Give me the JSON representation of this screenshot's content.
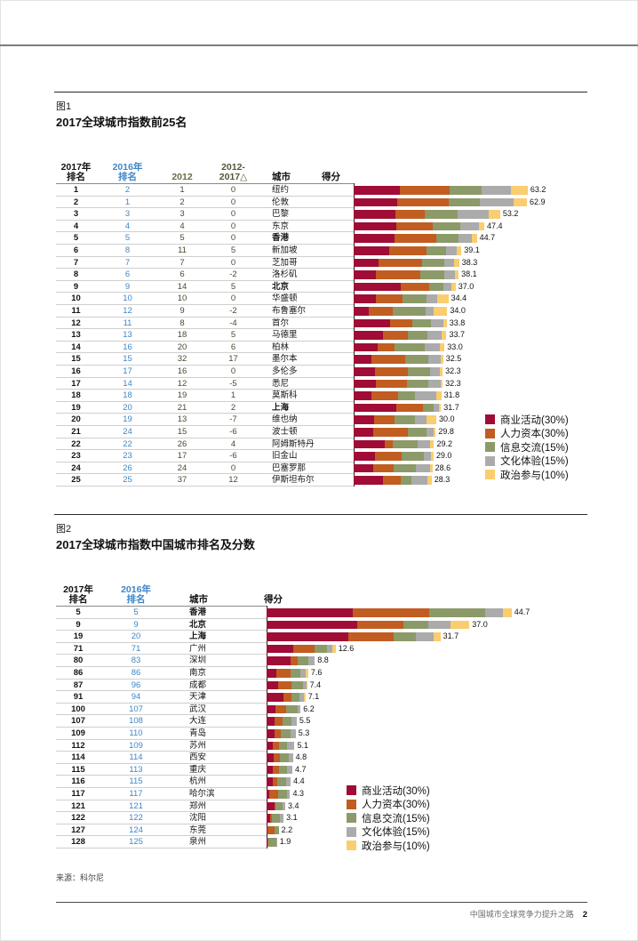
{
  "page": {
    "source": "来源：科尔尼",
    "footer_title": "中国城市全球竞争力提升之路",
    "page_number": "2"
  },
  "palette": {
    "business": "#A00C35",
    "human_capital": "#C15D20",
    "information": "#8B9A68",
    "culture": "#ABABAB",
    "politics": "#FACD6E",
    "rank2016_blue": "#3E86C8",
    "rank2012_olive": "#6A6A45",
    "change_olive": "#55553A",
    "rank_value_olive": "#4A4A33"
  },
  "legend_items": [
    {
      "key": "business",
      "label": "商业活动(30%)"
    },
    {
      "key": "human_capital",
      "label": "人力资本(30%)"
    },
    {
      "key": "information",
      "label": "信息交流(15%)"
    },
    {
      "key": "culture",
      "label": "文化体验(15%)"
    },
    {
      "key": "politics",
      "label": "政治参与(10%)"
    }
  ],
  "chart_data": [
    {
      "id": "fig1",
      "type": "bar",
      "subtype": "stacked-horizontal",
      "figure_label": "图1",
      "title": "2017全球城市指数前25名",
      "legend_position": "right-bottom",
      "series_names": [
        "商业活动(30%)",
        "人力资本(30%)",
        "信息交流(15%)",
        "文化体验(15%)",
        "政治参与(10%)"
      ],
      "headers": {
        "rank2017": "2017年|排名",
        "rank2016": "2016年|排名",
        "rank2012": "2012",
        "change": "2012-|2017△",
        "city": "城市",
        "score": "得分"
      },
      "rows": [
        {
          "rank2017": "1",
          "rank2016": "2",
          "rank2012": "1",
          "change": "0",
          "city": "纽约",
          "bold": false,
          "score": 63.2,
          "label": "63.2",
          "breakdown": [
            16.8,
            18.1,
            11.7,
            10.6,
            6.0
          ]
        },
        {
          "rank2017": "2",
          "rank2016": "1",
          "rank2012": "2",
          "change": "0",
          "city": "伦敦",
          "bold": false,
          "score": 62.9,
          "label": "62.9",
          "breakdown": [
            15.8,
            18.7,
            11.2,
            12.3,
            4.9
          ]
        },
        {
          "rank2017": "3",
          "rank2016": "3",
          "rank2012": "3",
          "change": "0",
          "city": "巴黎",
          "bold": false,
          "score": 53.2,
          "label": "53.2",
          "breakdown": [
            15.3,
            10.4,
            12.1,
            11.1,
            4.3
          ]
        },
        {
          "rank2017": "4",
          "rank2016": "4",
          "rank2012": "4",
          "change": "0",
          "city": "东京",
          "bold": false,
          "score": 47.4,
          "label": "47.4",
          "breakdown": [
            15.4,
            13.3,
            10.1,
            6.8,
            1.8
          ]
        },
        {
          "rank2017": "5",
          "rank2016": "5",
          "rank2012": "5",
          "change": "0",
          "city": "香港",
          "bold": true,
          "score": 44.7,
          "label": "44.7",
          "breakdown": [
            14.9,
            15.1,
            8.0,
            4.8,
            1.9
          ]
        },
        {
          "rank2017": "6",
          "rank2016": "8",
          "rank2012": "11",
          "change": "5",
          "city": "新加坡",
          "bold": false,
          "score": 39.1,
          "label": "39.1",
          "breakdown": [
            12.8,
            13.6,
            7.1,
            3.8,
            1.8
          ]
        },
        {
          "rank2017": "7",
          "rank2016": "7",
          "rank2012": "7",
          "change": "0",
          "city": "芝加哥",
          "bold": false,
          "score": 38.3,
          "label": "38.3",
          "breakdown": [
            9.0,
            15.7,
            8.1,
            3.8,
            1.7
          ]
        },
        {
          "rank2017": "8",
          "rank2016": "6",
          "rank2012": "6",
          "change": "-2",
          "city": "洛杉矶",
          "bold": false,
          "score": 38.1,
          "label": "38.1",
          "breakdown": [
            8.0,
            16.3,
            8.7,
            3.8,
            1.3
          ]
        },
        {
          "rank2017": "9",
          "rank2016": "9",
          "rank2012": "14",
          "change": "5",
          "city": "北京",
          "bold": true,
          "score": 37.0,
          "label": "37.0",
          "breakdown": [
            17.2,
            10.3,
            5.1,
            3.0,
            1.4
          ]
        },
        {
          "rank2017": "10",
          "rank2016": "10",
          "rank2012": "10",
          "change": "0",
          "city": "华盛顿",
          "bold": false,
          "score": 34.4,
          "label": "34.4",
          "breakdown": [
            8.2,
            9.5,
            8.6,
            3.9,
            4.2
          ]
        },
        {
          "rank2017": "11",
          "rank2016": "12",
          "rank2012": "9",
          "change": "-2",
          "city": "布鲁塞尔",
          "bold": false,
          "score": 34.0,
          "label": "34.0",
          "breakdown": [
            5.4,
            8.7,
            12.0,
            2.8,
            5.1
          ]
        },
        {
          "rank2017": "12",
          "rank2016": "11",
          "rank2012": "8",
          "change": "-4",
          "city": "首尔",
          "bold": false,
          "score": 33.8,
          "label": "33.8",
          "breakdown": [
            13.3,
            7.9,
            6.8,
            4.5,
            1.3
          ]
        },
        {
          "rank2017": "13",
          "rank2016": "13",
          "rank2012": "18",
          "change": "5",
          "city": "马德里",
          "bold": false,
          "score": 33.7,
          "label": "33.7",
          "breakdown": [
            10.6,
            9.0,
            7.3,
            5.1,
            1.7
          ]
        },
        {
          "rank2017": "14",
          "rank2016": "16",
          "rank2012": "20",
          "change": "6",
          "city": "柏林",
          "bold": false,
          "score": 33.0,
          "label": "33.0",
          "breakdown": [
            8.8,
            6.2,
            10.7,
            5.6,
            1.7
          ]
        },
        {
          "rank2017": "15",
          "rank2016": "15",
          "rank2012": "32",
          "change": "17",
          "city": "墨尔本",
          "bold": false,
          "score": 32.5,
          "label": "32.5",
          "breakdown": [
            6.5,
            12.3,
            8.4,
            4.5,
            0.8
          ]
        },
        {
          "rank2017": "16",
          "rank2016": "17",
          "rank2012": "16",
          "change": "0",
          "city": "多伦多",
          "bold": false,
          "score": 32.3,
          "label": "32.3",
          "breakdown": [
            7.6,
            12.1,
            8.1,
            3.6,
            0.9
          ]
        },
        {
          "rank2017": "17",
          "rank2016": "14",
          "rank2012": "12",
          "change": "-5",
          "city": "悉尼",
          "bold": false,
          "score": 32.3,
          "label": "32.3",
          "breakdown": [
            8.2,
            11.2,
            7.8,
            4.3,
            0.8
          ]
        },
        {
          "rank2017": "18",
          "rank2016": "18",
          "rank2012": "19",
          "change": "1",
          "city": "莫斯科",
          "bold": false,
          "score": 31.8,
          "label": "31.8",
          "breakdown": [
            6.5,
            9.5,
            6.2,
            7.9,
            1.7
          ]
        },
        {
          "rank2017": "19",
          "rank2016": "20",
          "rank2012": "21",
          "change": "2",
          "city": "上海",
          "bold": true,
          "score": 31.7,
          "label": "31.7",
          "breakdown": [
            15.6,
            9.6,
            3.7,
            2.2,
            0.6
          ]
        },
        {
          "rank2017": "20",
          "rank2016": "19",
          "rank2012": "13",
          "change": "-7",
          "city": "维也纳",
          "bold": false,
          "score": 30.0,
          "label": "30.0",
          "breakdown": [
            7.4,
            7.6,
            7.3,
            4.0,
            3.7
          ]
        },
        {
          "rank2017": "21",
          "rank2016": "24",
          "rank2012": "15",
          "change": "-6",
          "city": "波士顿",
          "bold": false,
          "score": 29.8,
          "label": "29.8",
          "breakdown": [
            7.2,
            12.5,
            6.8,
            2.5,
            0.8
          ]
        },
        {
          "rank2017": "22",
          "rank2016": "22",
          "rank2012": "26",
          "change": "4",
          "city": "阿姆斯特丹",
          "bold": false,
          "score": 29.2,
          "label": "29.2",
          "breakdown": [
            11.2,
            2.9,
            9.1,
            4.6,
            1.4
          ]
        },
        {
          "rank2017": "23",
          "rank2016": "23",
          "rank2012": "17",
          "change": "-6",
          "city": "旧金山",
          "bold": false,
          "score": 29.0,
          "label": "29.0",
          "breakdown": [
            7.7,
            9.7,
            8.0,
            2.8,
            0.8
          ]
        },
        {
          "rank2017": "24",
          "rank2016": "26",
          "rank2012": "24",
          "change": "0",
          "city": "巴塞罗那",
          "bold": false,
          "score": 28.6,
          "label": "28.6",
          "breakdown": [
            7.2,
            7.4,
            8.0,
            5.2,
            0.8
          ]
        },
        {
          "rank2017": "25",
          "rank2016": "25",
          "rank2012": "37",
          "change": "12",
          "city": "伊斯坦布尔",
          "bold": false,
          "score": 28.3,
          "label": "28.3",
          "breakdown": [
            10.8,
            6.3,
            4.0,
            5.7,
            1.5
          ]
        }
      ]
    },
    {
      "id": "fig2",
      "type": "bar",
      "subtype": "stacked-horizontal",
      "figure_label": "图2",
      "title": "2017全球城市指数中国城市排名及分数",
      "legend_position": "center-bottom",
      "series_names": [
        "商业活动(30%)",
        "人力资本(30%)",
        "信息交流(15%)",
        "文化体验(15%)",
        "政治参与(10%)"
      ],
      "headers": {
        "rank2017": "2017年|排名",
        "rank2016": "2016年|排名",
        "city": "城市",
        "score": "得分"
      },
      "rows": [
        {
          "rank2017": "5",
          "rank2016": "5",
          "city": "香港",
          "bold": true,
          "score": 44.7,
          "label": "44.7",
          "breakdown": [
            15.7,
            14.0,
            10.2,
            3.2,
            1.6
          ]
        },
        {
          "rank2017": "9",
          "rank2016": "9",
          "city": "北京",
          "bold": true,
          "score": 37.0,
          "label": "37.0",
          "breakdown": [
            16.5,
            8.4,
            4.6,
            4.0,
            3.5
          ]
        },
        {
          "rank2017": "19",
          "rank2016": "20",
          "city": "上海",
          "bold": true,
          "score": 31.7,
          "label": "31.7",
          "breakdown": [
            14.9,
            8.2,
            4.1,
            3.3,
            1.2
          ]
        },
        {
          "rank2017": "71",
          "rank2016": "71",
          "city": "广州",
          "bold": false,
          "score": 12.6,
          "label": "12.6",
          "breakdown": [
            4.9,
            3.8,
            2.3,
            1.0,
            0.6
          ]
        },
        {
          "rank2017": "80",
          "rank2016": "83",
          "city": "深圳",
          "bold": false,
          "score": 8.8,
          "label": "8.8",
          "breakdown": [
            4.4,
            1.3,
            2.0,
            1.1,
            0
          ]
        },
        {
          "rank2017": "86",
          "rank2016": "86",
          "city": "南京",
          "bold": false,
          "score": 7.6,
          "label": "7.6",
          "breakdown": [
            1.8,
            2.5,
            1.9,
            0.9,
            0.5
          ]
        },
        {
          "rank2017": "87",
          "rank2016": "96",
          "city": "成都",
          "bold": false,
          "score": 7.4,
          "label": "7.4",
          "breakdown": [
            2.1,
            2.5,
            2.1,
            0.6,
            0.1
          ]
        },
        {
          "rank2017": "91",
          "rank2016": "94",
          "city": "天津",
          "bold": false,
          "score": 7.1,
          "label": "7.1",
          "breakdown": [
            3.0,
            1.5,
            1.5,
            0.8,
            0.3
          ]
        },
        {
          "rank2017": "100",
          "rank2016": "107",
          "city": "武汉",
          "bold": false,
          "score": 6.2,
          "label": "6.2",
          "breakdown": [
            1.6,
            1.9,
            2.1,
            0.6,
            0
          ]
        },
        {
          "rank2017": "107",
          "rank2016": "108",
          "city": "大连",
          "bold": false,
          "score": 5.5,
          "label": "5.5",
          "breakdown": [
            1.4,
            1.6,
            1.6,
            0.9,
            0
          ]
        },
        {
          "rank2017": "109",
          "rank2016": "110",
          "city": "青岛",
          "bold": false,
          "score": 5.3,
          "label": "5.3",
          "breakdown": [
            1.4,
            1.2,
            1.7,
            1.0,
            0
          ]
        },
        {
          "rank2017": "112",
          "rank2016": "109",
          "city": "苏州",
          "bold": false,
          "score": 5.1,
          "label": "5.1",
          "breakdown": [
            1.2,
            1.0,
            1.6,
            1.3,
            0
          ]
        },
        {
          "rank2017": "114",
          "rank2016": "114",
          "city": "西安",
          "bold": false,
          "score": 4.8,
          "label": "4.8",
          "breakdown": [
            1.3,
            1.2,
            1.5,
            0.8,
            0
          ]
        },
        {
          "rank2017": "115",
          "rank2016": "113",
          "city": "重庆",
          "bold": false,
          "score": 4.7,
          "label": "4.7",
          "breakdown": [
            1.2,
            1.1,
            1.4,
            1.0,
            0
          ]
        },
        {
          "rank2017": "116",
          "rank2016": "115",
          "city": "杭州",
          "bold": false,
          "score": 4.4,
          "label": "4.4",
          "breakdown": [
            1.1,
            0.9,
            1.6,
            0.8,
            0
          ]
        },
        {
          "rank2017": "117",
          "rank2016": "117",
          "city": "哈尔滨",
          "bold": false,
          "score": 4.3,
          "label": "4.3",
          "breakdown": [
            0.5,
            1.6,
            1.6,
            0.6,
            0
          ]
        },
        {
          "rank2017": "121",
          "rank2016": "121",
          "city": "郑州",
          "bold": false,
          "score": 3.4,
          "label": "3.4",
          "breakdown": [
            1.5,
            0.2,
            1.2,
            0.5,
            0
          ]
        },
        {
          "rank2017": "122",
          "rank2016": "122",
          "city": "沈阳",
          "bold": false,
          "score": 3.1,
          "label": "3.1",
          "breakdown": [
            0.7,
            0.3,
            1.5,
            0.6,
            0
          ]
        },
        {
          "rank2017": "127",
          "rank2016": "124",
          "city": "东莞",
          "bold": false,
          "score": 2.2,
          "label": "2.2",
          "breakdown": [
            0.2,
            1.2,
            0.8,
            0,
            0
          ]
        },
        {
          "rank2017": "128",
          "rank2016": "125",
          "city": "泉州",
          "bold": false,
          "score": 1.9,
          "label": "1.9",
          "breakdown": [
            0.2,
            0.2,
            1.4,
            0.1,
            0
          ]
        }
      ]
    }
  ]
}
